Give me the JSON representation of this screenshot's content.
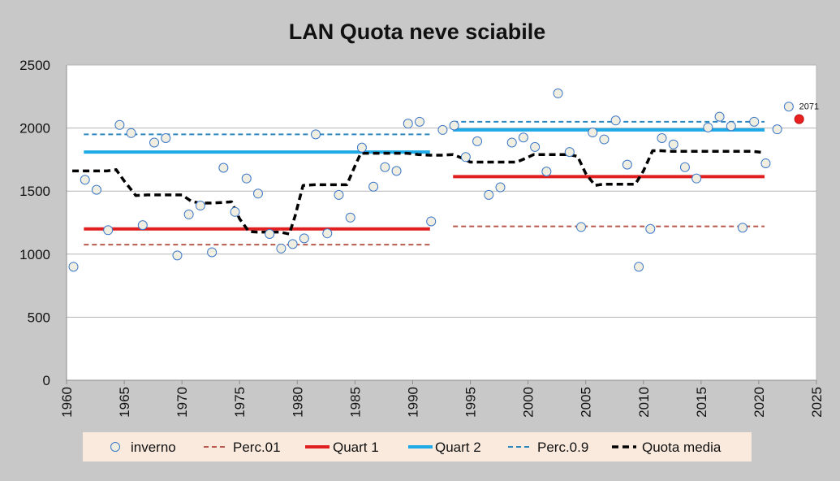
{
  "chart_data": {
    "type": "scatter",
    "title": "LAN Quota neve sciabile",
    "xlabel": "",
    "ylabel": "",
    "xlim": [
      1960,
      2025
    ],
    "ylim": [
      0,
      2500
    ],
    "xticks": [
      1960,
      1965,
      1970,
      1975,
      1980,
      1985,
      1990,
      1995,
      2000,
      2005,
      2010,
      2015,
      2020,
      2025
    ],
    "yticks": [
      0,
      500,
      1000,
      1500,
      2000,
      2500
    ],
    "grid": "horizontal",
    "legend_position": "bottom",
    "series": [
      {
        "name": "inverno",
        "kind": "markers",
        "color": "#3c78c8",
        "fill": "#f0ede1",
        "x": [
          1960.6,
          1961.6,
          1962.6,
          1963.6,
          1964.6,
          1965.6,
          1966.6,
          1967.6,
          1968.6,
          1969.6,
          1970.6,
          1971.6,
          1972.6,
          1973.6,
          1974.6,
          1975.6,
          1976.6,
          1977.6,
          1978.6,
          1979.6,
          1980.6,
          1981.6,
          1982.6,
          1983.6,
          1984.6,
          1985.6,
          1986.6,
          1987.6,
          1988.6,
          1989.6,
          1990.6,
          1991.6,
          1992.6,
          1993.6,
          1994.6,
          1995.6,
          1996.6,
          1997.6,
          1998.6,
          1999.6,
          2000.6,
          2001.6,
          2002.6,
          2003.6,
          2004.6,
          2005.6,
          2006.6,
          2007.6,
          2008.6,
          2009.6,
          2010.6,
          2011.6,
          2012.6,
          2013.6,
          2014.6,
          2015.6,
          2016.6,
          2017.6,
          2018.6,
          2019.6,
          2020.6,
          2021.6,
          2022.6
        ],
        "y": [
          900,
          1590,
          1510,
          1190,
          2025,
          1960,
          1230,
          1885,
          1920,
          990,
          1315,
          1385,
          1015,
          1685,
          1335,
          1600,
          1480,
          1160,
          1045,
          1080,
          1125,
          1950,
          1165,
          1470,
          1290,
          1845,
          1535,
          1690,
          1660,
          2035,
          2050,
          1260,
          1985,
          2020,
          1770,
          1895,
          1470,
          1530,
          1885,
          1925,
          1850,
          1655,
          2275,
          1810,
          1215,
          1965,
          1910,
          2060,
          1710,
          900,
          1200,
          1920,
          1870,
          1690,
          1600,
          2005,
          2090,
          2015,
          1210,
          2050,
          1720,
          1990,
          2170
        ]
      },
      {
        "name": "Perc.01",
        "kind": "segments",
        "color": "#b85a4e",
        "dash": true,
        "segments": [
          {
            "x": [
              1961.5,
              1991.5
            ],
            "y": 1075
          },
          {
            "x": [
              1993.5,
              2020.5
            ],
            "y": 1220
          }
        ]
      },
      {
        "name": "Quart 1",
        "kind": "segments",
        "color": "#e02020",
        "dash": false,
        "segments": [
          {
            "x": [
              1961.5,
              1991.5
            ],
            "y": 1200
          },
          {
            "x": [
              1993.5,
              2020.5
            ],
            "y": 1615
          }
        ]
      },
      {
        "name": "Quart 2",
        "kind": "segments",
        "color": "#1eaae6",
        "dash": false,
        "segments": [
          {
            "x": [
              1961.5,
              1991.5
            ],
            "y": 1810
          },
          {
            "x": [
              1993.5,
              2020.5
            ],
            "y": 1985
          }
        ]
      },
      {
        "name": "Perc.0.9",
        "kind": "segments",
        "color": "#2e86c0",
        "dash": true,
        "segments": [
          {
            "x": [
              1961.5,
              1991.5
            ],
            "y": 1950
          },
          {
            "x": [
              1993.5,
              2020.5
            ],
            "y": 2050
          }
        ]
      },
      {
        "name": "Quota media",
        "kind": "line",
        "color": "#000000",
        "dash": true,
        "x": [
          1960.5,
          1961.5,
          1962.5,
          1963.5,
          1964.3,
          1965,
          1966,
          1967,
          1968,
          1969,
          1970,
          1970.8,
          1971.5,
          1972.5,
          1973.5,
          1974.3,
          1975,
          1975.8,
          1976.5,
          1977.5,
          1978.5,
          1979.3,
          1979.8,
          1980.5,
          1981.5,
          1982.5,
          1983.5,
          1984.3,
          1985,
          1985.5,
          1986.5,
          1987.5,
          1988.5,
          1989.5,
          1990.5,
          1991.5,
          1992.5,
          1993.5,
          1994.3,
          1995,
          1996,
          1997,
          1998,
          1999,
          1999.8,
          2000.5,
          2001.5,
          2002.5,
          2003.5,
          2004.3,
          2005,
          2005.8,
          2006.5,
          2007.5,
          2008.5,
          2009.3,
          2010,
          2010.8,
          2011.5,
          2012.5,
          2013.5,
          2014.5,
          2015.5,
          2016.5,
          2017.5,
          2018.5,
          2019.5,
          2020.5
        ],
        "y": [
          1660,
          1660,
          1660,
          1660,
          1670,
          1580,
          1465,
          1470,
          1470,
          1470,
          1470,
          1420,
          1405,
          1405,
          1410,
          1415,
          1280,
          1180,
          1175,
          1175,
          1175,
          1160,
          1300,
          1545,
          1550,
          1550,
          1550,
          1550,
          1700,
          1800,
          1800,
          1800,
          1800,
          1800,
          1790,
          1785,
          1785,
          1790,
          1760,
          1730,
          1730,
          1730,
          1730,
          1730,
          1760,
          1790,
          1790,
          1790,
          1790,
          1775,
          1640,
          1545,
          1555,
          1555,
          1555,
          1555,
          1660,
          1820,
          1820,
          1815,
          1815,
          1815,
          1815,
          1815,
          1815,
          1815,
          1815,
          1805
        ]
      },
      {
        "name": "highlight",
        "kind": "marker",
        "color": "#e82020",
        "x": 2023.5,
        "y": 2071,
        "label": "2071"
      }
    ]
  }
}
